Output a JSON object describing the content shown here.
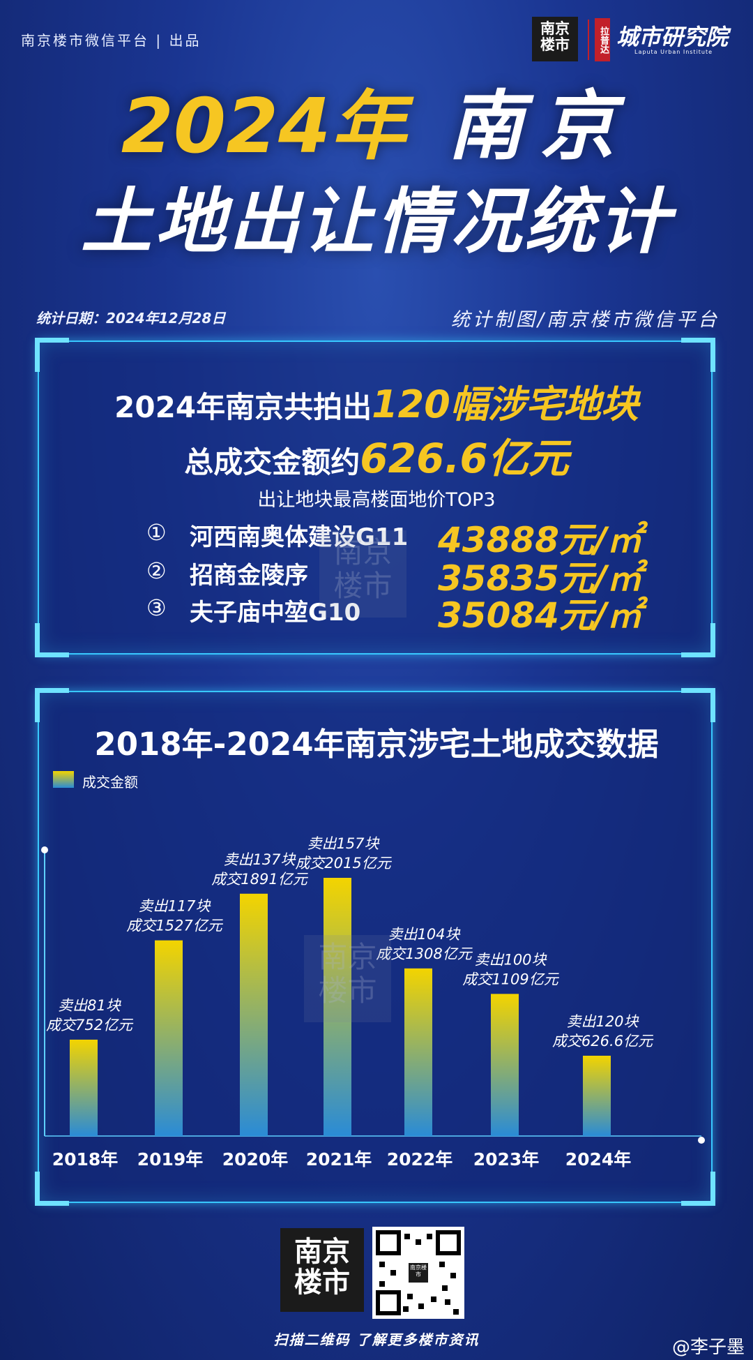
{
  "header": {
    "publisher": "南京楼市微信平台 | 出品",
    "logo_text": "南京\n楼市",
    "partner_tag": "拉普达",
    "institute_name": "城市研究院",
    "institute_en": "Laputa Urban Institute"
  },
  "title": {
    "year": "2024年",
    "city": "南京",
    "subtitle": "土地出让情况统计"
  },
  "meta": {
    "date": "统计日期：2024年12月28日",
    "credit": "统计制图/南京楼市微信平台"
  },
  "summary": {
    "line1_prefix": "2024年南京共拍出",
    "line1_highlight": "120幅涉宅地块",
    "line2_prefix": "总成交金额约",
    "line2_highlight": "626.6亿元",
    "top3_title": "出让地块最高楼面地价TOP3",
    "top3": [
      {
        "rank": "①",
        "name": "河西南奥体建设G11",
        "price": "43888元/㎡"
      },
      {
        "rank": "②",
        "name": "招商金陵序",
        "price": "35835元/㎡"
      },
      {
        "rank": "③",
        "name": "夫子庙中堃G10",
        "price": "35084元/㎡"
      }
    ]
  },
  "watermark": "南京\n楼市",
  "chart_data": {
    "type": "bar",
    "title": "2018年-2024年南京涉宅土地成交数据",
    "legend": [
      "成交金额"
    ],
    "legend_position": "top-left",
    "categories": [
      "2018年",
      "2019年",
      "2020年",
      "2021年",
      "2022年",
      "2023年",
      "2024年"
    ],
    "series": [
      {
        "name": "成交金额",
        "values": [
          752,
          1527,
          1891,
          2015,
          1308,
          1109,
          626.6
        ]
      }
    ],
    "plots_sold": [
      81,
      117,
      137,
      157,
      104,
      100,
      120
    ],
    "annotations": [
      [
        "卖出81块",
        "成交752亿元"
      ],
      [
        "卖出117块",
        "成交1527亿元"
      ],
      [
        "卖出137块",
        "成交1891亿元"
      ],
      [
        "卖出157块",
        "成交2015亿元"
      ],
      [
        "卖出104块",
        "成交1308亿元"
      ],
      [
        "卖出100块",
        "成交1109亿元"
      ],
      [
        "卖出120块",
        "成交626.6亿元"
      ]
    ],
    "ylim": [
      0,
      2015
    ],
    "bar_colors": [
      "#f3d400",
      "#2a8bd6"
    ]
  },
  "footer": {
    "logo_text": "南京\n楼市",
    "qr_center": "南京楼市",
    "scan_text": "扫描二维码 了解更多楼市资讯",
    "weibo": "@李子墨"
  }
}
